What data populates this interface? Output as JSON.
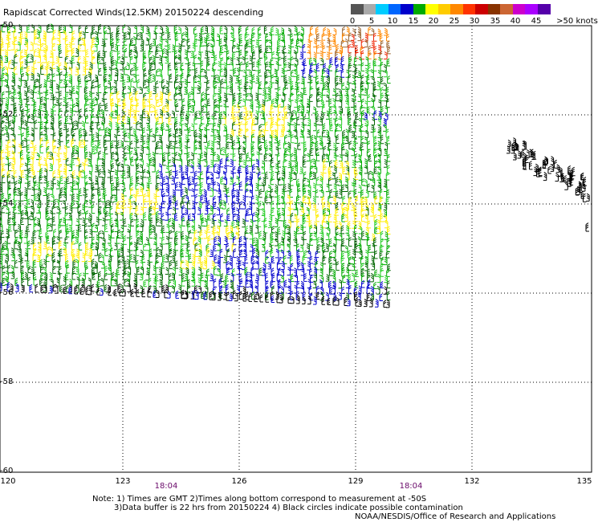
{
  "title": "Rapidscat Corrected Winds(12.5KM) 20150224 descending",
  "legend": {
    "colors": [
      "#555555",
      "#aaaaaa",
      "#00ccff",
      "#0066ff",
      "#0000cc",
      "#00aa00",
      "#ffff00",
      "#ffcc00",
      "#ff8800",
      "#ff3300",
      "#cc0000",
      "#883300",
      "#cc6633",
      "#cc00cc",
      "#aa00ff",
      "#5500aa"
    ],
    "labels": [
      "0",
      "5",
      "10",
      "15",
      "20",
      "25",
      "30",
      "35",
      "40",
      "45",
      ">50 knots"
    ]
  },
  "lat_labels": [
    "-50",
    "-52",
    "-54",
    "-56",
    "-58",
    "-60"
  ],
  "lon_labels": [
    "120",
    "123",
    "126",
    "129",
    "132",
    "135"
  ],
  "time_labels": [
    "18:04",
    "18:04"
  ],
  "notes": {
    "line1": "Note: 1) Times are GMT 2)Times along bottom correspond to measurement at -50S",
    "line2": "3)Data buffer is 22 hrs from 20150224 4) Black circles indicate possible contamination",
    "line3": "NOAA/NESDIS/Office of Research and Applications"
  },
  "wind_colors": {
    "dark_green": "#006600",
    "green": "#00aa00",
    "bright_green": "#22cc22",
    "yellow": "#ffee00",
    "blue": "#0000cc",
    "black": "#000000",
    "orange": "#ff8800",
    "red": "#ee2200",
    "brown": "#996633"
  }
}
